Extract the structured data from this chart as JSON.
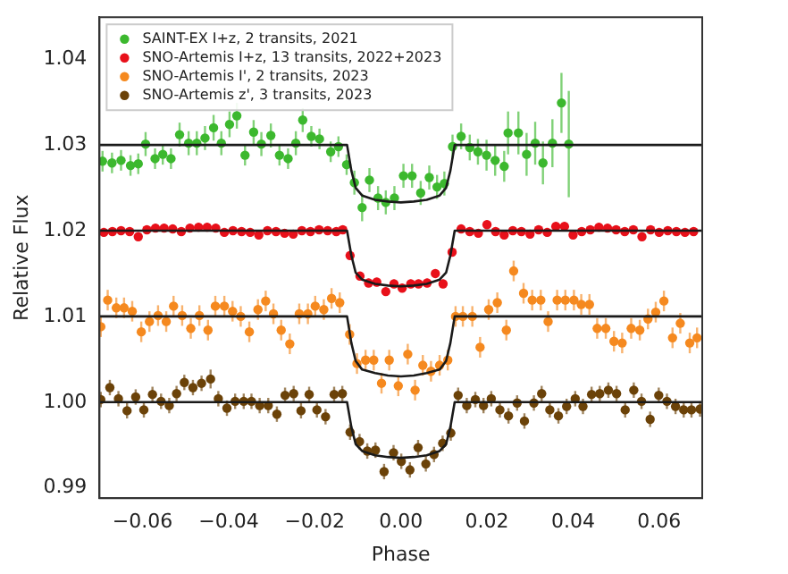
{
  "chart_data": {
    "type": "scatter",
    "xlabel": "Phase",
    "ylabel": "Relative Flux",
    "xlim": [
      -0.07,
      0.07
    ],
    "ylim": [
      0.9888,
      1.0449
    ],
    "xticks": [
      {
        "value": -0.06,
        "label": "−0.06"
      },
      {
        "value": -0.04,
        "label": "−0.04"
      },
      {
        "value": -0.02,
        "label": "−0.02"
      },
      {
        "value": 0,
        "label": "0.00"
      },
      0.02,
      0.04,
      0.06
    ],
    "yticks": [
      0.99,
      {
        "value": 1,
        "label": "1.00"
      },
      1.01,
      1.02,
      1.03,
      1.04
    ],
    "grid": false,
    "legend": "top left",
    "marker": "circle",
    "series": [
      {
        "name": "SAINT-EX I+z, 2 transits, 2021",
        "color": "#3cb82e",
        "x": [
          -0.0693,
          -0.0671,
          -0.065,
          -0.0628,
          -0.061,
          -0.0593,
          -0.0571,
          -0.0553,
          -0.0534,
          -0.0514,
          -0.0493,
          -0.0474,
          -0.0455,
          -0.0435,
          -0.0417,
          -0.0398,
          -0.0381,
          -0.0362,
          -0.0342,
          -0.0324,
          -0.0302,
          -0.0282,
          -0.0262,
          -0.0244,
          -0.0228,
          -0.0208,
          -0.0189,
          -0.0163,
          -0.0145,
          -0.0126,
          -0.0108,
          -0.009,
          -0.0073,
          -0.0053,
          -0.0035,
          -0.0015,
          0.0006,
          0.0026,
          0.0046,
          0.0066,
          0.0084,
          0.0101,
          0.012,
          0.014,
          0.016,
          0.0179,
          0.0199,
          0.0219,
          0.024,
          0.0249,
          0.0273,
          0.0292,
          0.0312,
          0.033,
          0.0352,
          0.0373,
          0.039
        ],
        "values": [
          1.0281,
          1.0279,
          1.0282,
          1.0276,
          1.0278,
          1.0301,
          1.0284,
          1.0289,
          1.0284,
          1.0312,
          1.0302,
          1.0302,
          1.0308,
          1.032,
          1.0302,
          1.0324,
          1.0334,
          1.0288,
          1.0315,
          1.0301,
          1.0311,
          1.0288,
          1.0284,
          1.0302,
          1.0329,
          1.031,
          1.0307,
          1.0292,
          1.0298,
          1.0277,
          1.0256,
          1.0227,
          1.0259,
          1.0238,
          1.0233,
          1.0238,
          1.0264,
          1.0264,
          1.0244,
          1.0262,
          1.0251,
          1.0255,
          1.0298,
          1.031,
          1.0297,
          1.0292,
          1.0288,
          1.0282,
          1.0275,
          1.0314,
          1.0314,
          1.0289,
          1.0302,
          1.0279,
          1.0302,
          1.0349,
          1.0301
        ],
        "errors": [
          0.0012,
          0.0012,
          0.0012,
          0.0012,
          0.0012,
          0.0014,
          0.0012,
          0.0012,
          0.0012,
          0.0014,
          0.0014,
          0.0014,
          0.0014,
          0.0015,
          0.0014,
          0.0015,
          0.0015,
          0.0012,
          0.0014,
          0.0014,
          0.0014,
          0.0012,
          0.0012,
          0.0014,
          0.0014,
          0.0012,
          0.0012,
          0.0012,
          0.0012,
          0.0012,
          0.0014,
          0.0016,
          0.0014,
          0.0014,
          0.0014,
          0.0014,
          0.0014,
          0.0014,
          0.0014,
          0.0014,
          0.0014,
          0.0014,
          0.0014,
          0.0015,
          0.0015,
          0.0015,
          0.0018,
          0.0018,
          0.0018,
          0.0025,
          0.0025,
          0.0025,
          0.0025,
          0.0025,
          0.0028,
          0.0035,
          0.0062
        ]
      },
      {
        "name": "SNO-Artemis I+z, 13 transits, 2022+2023",
        "color": "#e8101a",
        "x": [
          -0.069,
          -0.067,
          -0.065,
          -0.063,
          -0.061,
          -0.059,
          -0.057,
          -0.055,
          -0.053,
          -0.051,
          -0.049,
          -0.047,
          -0.045,
          -0.043,
          -0.041,
          -0.039,
          -0.037,
          -0.035,
          -0.033,
          -0.031,
          -0.029,
          -0.027,
          -0.025,
          -0.023,
          -0.021,
          -0.019,
          -0.017,
          -0.015,
          -0.0135,
          -0.0118,
          -0.0095,
          -0.0075,
          -0.0056,
          -0.0035,
          -0.0016,
          0.0003,
          0.0023,
          0.0041,
          0.0061,
          0.008,
          0.0098,
          0.0119,
          0.014,
          0.016,
          0.018,
          0.02,
          0.022,
          0.024,
          0.026,
          0.028,
          0.03,
          0.032,
          0.034,
          0.036,
          0.038,
          0.04,
          0.042,
          0.044,
          0.046,
          0.048,
          0.05,
          0.052,
          0.054,
          0.056,
          0.058,
          0.06,
          0.062,
          0.064,
          0.066,
          0.068
        ],
        "values": [
          1.0198,
          1.0199,
          1.02,
          1.0199,
          1.0193,
          1.0201,
          1.0203,
          1.0203,
          1.0202,
          1.0199,
          1.0203,
          1.0204,
          1.0204,
          1.0203,
          1.0198,
          1.02,
          1.0199,
          1.0198,
          1.0195,
          1.02,
          1.0199,
          1.0197,
          1.0196,
          1.02,
          1.0199,
          1.0201,
          1.02,
          1.0199,
          1.0201,
          1.0171,
          1.0147,
          1.0139,
          1.014,
          1.0129,
          1.0138,
          1.0133,
          1.0138,
          1.0138,
          1.0139,
          1.015,
          1.0138,
          1.0175,
          1.0202,
          1.0199,
          1.0197,
          1.0207,
          1.0199,
          1.0195,
          1.02,
          1.0199,
          1.0196,
          1.0201,
          1.0198,
          1.0205,
          1.0205,
          1.0195,
          1.0199,
          1.0201,
          1.0204,
          1.0203,
          1.0201,
          1.0199,
          1.0201,
          1.0193,
          1.0201,
          1.0198,
          1.02,
          1.0199,
          1.0198,
          1.0199
        ],
        "errors": [
          0.0005,
          0.0005,
          0.0005,
          0.0005,
          0.0005,
          0.0005,
          0.0005,
          0.0005,
          0.0005,
          0.0005,
          0.0005,
          0.0005,
          0.0005,
          0.0005,
          0.0005,
          0.0005,
          0.0005,
          0.0005,
          0.0005,
          0.0005,
          0.0005,
          0.0005,
          0.0005,
          0.0005,
          0.0005,
          0.0005,
          0.0005,
          0.0005,
          0.0005,
          0.0005,
          0.0005,
          0.0005,
          0.0005,
          0.0005,
          0.0005,
          0.0005,
          0.0005,
          0.0005,
          0.0005,
          0.0005,
          0.0005,
          0.0005,
          0.0005,
          0.0005,
          0.0005,
          0.0005,
          0.0005,
          0.0005,
          0.0005,
          0.0005,
          0.0005,
          0.0005,
          0.0005,
          0.0005,
          0.0005,
          0.0005,
          0.0005,
          0.0005,
          0.0005,
          0.0005,
          0.0005,
          0.0005,
          0.0005,
          0.0005,
          0.0005,
          0.0005,
          0.0005,
          0.0005,
          0.0005,
          0.0005
        ]
      },
      {
        "name": "SNO-Artemis I', 2 transits, 2023",
        "color": "#f5891f",
        "x": [
          -0.0697,
          -0.0681,
          -0.0661,
          -0.0643,
          -0.0624,
          -0.0603,
          -0.0584,
          -0.0564,
          -0.0545,
          -0.0528,
          -0.0508,
          -0.0488,
          -0.0468,
          -0.0448,
          -0.0431,
          -0.041,
          -0.0391,
          -0.0372,
          -0.0352,
          -0.0332,
          -0.0314,
          -0.0296,
          -0.0278,
          -0.0258,
          -0.0236,
          -0.0216,
          -0.0199,
          -0.0179,
          -0.0161,
          -0.0142,
          -0.0119,
          -0.0102,
          -0.0082,
          -0.0063,
          -0.0045,
          -0.0027,
          -0.0006,
          0.0016,
          0.0033,
          0.0051,
          0.007,
          0.009,
          0.0109,
          0.0127,
          0.0144,
          0.0166,
          0.0184,
          0.0204,
          0.0224,
          0.0245,
          0.0262,
          0.0285,
          0.0305,
          0.0325,
          0.0342,
          0.0363,
          0.0382,
          0.0402,
          0.0419,
          0.0438,
          0.0456,
          0.0476,
          0.0495,
          0.0514,
          0.0535,
          0.0555,
          0.0574,
          0.0592,
          0.0611,
          0.0631,
          0.0649,
          0.0671,
          0.0688
        ],
        "values": [
          1.0088,
          1.0119,
          1.011,
          1.011,
          1.0106,
          1.0082,
          1.0094,
          1.0101,
          1.0094,
          1.0112,
          1.0101,
          1.0086,
          1.0101,
          1.0084,
          1.0112,
          1.0112,
          1.0106,
          1.01,
          1.0082,
          1.0108,
          1.0118,
          1.0103,
          1.0084,
          1.0068,
          1.0103,
          1.0103,
          1.0112,
          1.0108,
          1.0121,
          1.0116,
          1.0079,
          1.0045,
          1.0049,
          1.0049,
          1.0022,
          1.0049,
          1.0019,
          1.0056,
          1.0014,
          1.0043,
          1.0036,
          1.0043,
          1.0049,
          1.01,
          1.01,
          1.01,
          1.0064,
          1.0108,
          1.0116,
          1.0084,
          1.0153,
          1.0127,
          1.0119,
          1.0119,
          1.0094,
          1.0119,
          1.0119,
          1.0119,
          1.0114,
          1.0114,
          1.0086,
          1.0086,
          1.0071,
          1.0069,
          1.0086,
          1.0084,
          1.0097,
          1.0105,
          1.0118,
          1.0075,
          1.0092,
          1.0069,
          1.0075
        ],
        "errors": [
          0.0012,
          0.0012,
          0.0012,
          0.0012,
          0.0012,
          0.0012,
          0.0012,
          0.0012,
          0.0012,
          0.0012,
          0.0012,
          0.0012,
          0.0012,
          0.0012,
          0.0012,
          0.0012,
          0.0012,
          0.0012,
          0.0012,
          0.0012,
          0.0012,
          0.0012,
          0.0012,
          0.0012,
          0.0012,
          0.0012,
          0.0012,
          0.0012,
          0.0012,
          0.0012,
          0.0012,
          0.0012,
          0.0012,
          0.0012,
          0.0012,
          0.0012,
          0.0012,
          0.0012,
          0.0012,
          0.0012,
          0.0012,
          0.0012,
          0.0012,
          0.0012,
          0.0012,
          0.0012,
          0.0012,
          0.0012,
          0.0012,
          0.0012,
          0.0012,
          0.0012,
          0.0012,
          0.0012,
          0.0012,
          0.0012,
          0.0012,
          0.0012,
          0.0012,
          0.0012,
          0.0012,
          0.0012,
          0.0012,
          0.0012,
          0.0012,
          0.0012,
          0.0012,
          0.0012,
          0.0012,
          0.0012,
          0.0012,
          0.0012,
          0.0012
        ]
      },
      {
        "name": "SNO-Artemis z', 3 transits, 2023",
        "color": "#6b4208",
        "x": [
          -0.0697,
          -0.0676,
          -0.0656,
          -0.0636,
          -0.0616,
          -0.0597,
          -0.0577,
          -0.0557,
          -0.0538,
          -0.0521,
          -0.0503,
          -0.0483,
          -0.0463,
          -0.0442,
          -0.0424,
          -0.0404,
          -0.0385,
          -0.0365,
          -0.0347,
          -0.0328,
          -0.0308,
          -0.0288,
          -0.0269,
          -0.0249,
          -0.0232,
          -0.0213,
          -0.0195,
          -0.0175,
          -0.0155,
          -0.0136,
          -0.0118,
          -0.0096,
          -0.0078,
          -0.0059,
          -0.0039,
          -0.0017,
          0.0001,
          0.0021,
          0.004,
          0.0058,
          0.0077,
          0.0097,
          0.0116,
          0.0133,
          0.0153,
          0.0173,
          0.0192,
          0.021,
          0.023,
          0.025,
          0.027,
          0.0287,
          0.0309,
          0.0327,
          0.0346,
          0.0366,
          0.0385,
          0.0405,
          0.0423,
          0.0443,
          0.0462,
          0.0482,
          0.0501,
          0.0521,
          0.0541,
          0.0559,
          0.0579,
          0.0599,
          0.0618,
          0.0638,
          0.0657,
          0.0675,
          0.0695
        ],
        "values": [
          1.0003,
          1.0017,
          1.0004,
          0.999,
          1.0006,
          0.9991,
          1.0009,
          1.0001,
          0.9996,
          1.001,
          1.0023,
          1.0017,
          1.0022,
          1.0027,
          1.0004,
          0.9993,
          1.0001,
          1.0001,
          1.0001,
          0.9996,
          0.9996,
          0.9986,
          1.0008,
          1.001,
          0.999,
          1.0009,
          0.9991,
          0.9983,
          1.0009,
          1.001,
          0.9965,
          0.9954,
          0.9943,
          0.9944,
          0.9919,
          0.9941,
          0.9931,
          0.9921,
          0.9947,
          0.9928,
          0.9939,
          0.9952,
          0.9964,
          1.0008,
          0.9996,
          1.0003,
          0.9996,
          1.0004,
          0.9991,
          0.9984,
          0.9999,
          0.9978,
          0.9999,
          1.001,
          0.9991,
          0.9984,
          0.9995,
          1.0004,
          0.9995,
          1.0009,
          1.001,
          1.0014,
          1.001,
          0.9991,
          1.0014,
          1.0001,
          0.998,
          1.0008,
          1.0001,
          0.9995,
          0.9991,
          0.9991,
          0.9992
        ],
        "errors": [
          0.0009,
          0.0009,
          0.0009,
          0.0009,
          0.0009,
          0.0009,
          0.0009,
          0.0009,
          0.0009,
          0.0009,
          0.0009,
          0.0009,
          0.0009,
          0.0011,
          0.0009,
          0.0009,
          0.0009,
          0.0009,
          0.0009,
          0.0009,
          0.0009,
          0.0009,
          0.0009,
          0.0009,
          0.0009,
          0.0009,
          0.0009,
          0.0009,
          0.0009,
          0.0009,
          0.0009,
          0.0009,
          0.0009,
          0.0009,
          0.0009,
          0.0009,
          0.0009,
          0.0009,
          0.0009,
          0.0009,
          0.0009,
          0.0009,
          0.0009,
          0.0009,
          0.0009,
          0.0009,
          0.0009,
          0.0009,
          0.0009,
          0.0009,
          0.0009,
          0.0009,
          0.0009,
          0.0009,
          0.0009,
          0.0009,
          0.0009,
          0.0009,
          0.0009,
          0.0009,
          0.0009,
          0.0009,
          0.0009,
          0.0009,
          0.0009,
          0.0009,
          0.0009,
          0.0009,
          0.0009,
          0.0009,
          0.0009,
          0.0009,
          0.0009
        ]
      },
      {
        "color": "#1a1a1a",
        "type": "line",
        "marker": "none",
        "line_style": "solid",
        "x": [
          -0.07,
          -0.0125,
          -0.0115,
          -0.0105,
          -0.009,
          -0.006,
          -0.003,
          0,
          0.003,
          0.006,
          0.009,
          0.0105,
          0.0115,
          0.0125,
          0.07
        ],
        "values": [
          1.03,
          1.03,
          1.027,
          1.025,
          1.0241,
          1.0236,
          1.0234,
          1.0233,
          1.0234,
          1.0236,
          1.0241,
          1.025,
          1.027,
          1.03,
          1.03
        ]
      },
      {
        "color": "#1a1a1a",
        "type": "line",
        "marker": "none",
        "line_style": "solid",
        "x": [
          -0.07,
          -0.0125,
          -0.0115,
          -0.0105,
          -0.009,
          -0.006,
          -0.003,
          0,
          0.003,
          0.006,
          0.009,
          0.0105,
          0.0115,
          0.0125,
          0.07
        ],
        "values": [
          1.02,
          1.02,
          1.0171,
          1.0151,
          1.0143,
          1.0138,
          1.0136,
          1.0135,
          1.0136,
          1.0138,
          1.0143,
          1.0151,
          1.0171,
          1.02,
          1.02
        ]
      },
      {
        "color": "#1a1a1a",
        "type": "line",
        "marker": "none",
        "line_style": "solid",
        "x": [
          -0.07,
          -0.0125,
          -0.0115,
          -0.0105,
          -0.009,
          -0.006,
          -0.003,
          0,
          0.003,
          0.006,
          0.009,
          0.0105,
          0.0115,
          0.0125,
          0.07
        ],
        "values": [
          1.01,
          1.01,
          1.0069,
          1.0048,
          1.0038,
          1.0034,
          1.0031,
          1.003,
          1.0031,
          1.0034,
          1.0038,
          1.0048,
          1.0069,
          1.01,
          1.01
        ]
      },
      {
        "color": "#1a1a1a",
        "type": "line",
        "marker": "none",
        "line_style": "solid",
        "x": [
          -0.07,
          -0.0125,
          -0.0115,
          -0.0105,
          -0.009,
          -0.006,
          -0.003,
          0,
          0.003,
          0.006,
          0.009,
          0.0105,
          0.0115,
          0.0125,
          0.07
        ],
        "values": [
          1,
          1,
          0.9971,
          0.9951,
          0.9943,
          0.9938,
          0.9936,
          0.9935,
          0.9936,
          0.9938,
          0.9943,
          0.9951,
          0.9971,
          1,
          1
        ]
      }
    ]
  }
}
